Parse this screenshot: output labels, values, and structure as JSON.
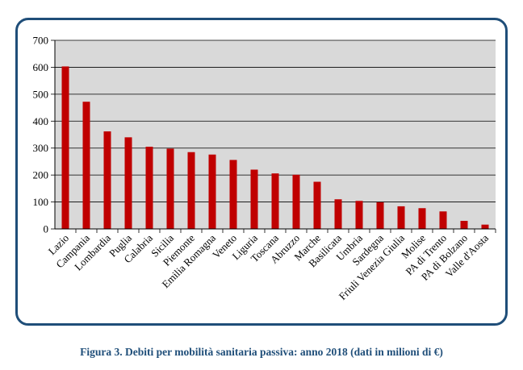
{
  "caption": "Figura 3. Debiti per mobilità sanitaria passiva: anno 2018 (dati in milioni di €)",
  "colors": {
    "bar": "#c00000",
    "plot_background": "#d9d9d9",
    "frame": "#1f4e79",
    "caption": "#1f4e79",
    "gridline": "#000000"
  },
  "chart_data": {
    "type": "bar",
    "title": "",
    "xlabel": "",
    "ylabel": "",
    "ylim": [
      0,
      700
    ],
    "yticks": [
      0,
      100,
      200,
      300,
      400,
      500,
      600,
      700
    ],
    "grid": true,
    "legend": "none",
    "categories": [
      "Lazio",
      "Campania",
      "Lombardia",
      "Puglia",
      "Calabria",
      "Sicilia",
      "Piemonte",
      "Emilia Romagna",
      "Veneto",
      "Liguria",
      "Toscana",
      "Abruzzo",
      "Marche",
      "Basilicata",
      "Umbria",
      "Sardegna",
      "Friuli Venezia Giulia",
      "Molise",
      "PA di Trento",
      "PA di Bolzano",
      "Valle d'Aosta"
    ],
    "values": [
      603,
      472,
      362,
      340,
      305,
      298,
      285,
      276,
      256,
      220,
      206,
      201,
      175,
      110,
      104,
      99,
      84,
      77,
      65,
      30,
      16
    ]
  }
}
